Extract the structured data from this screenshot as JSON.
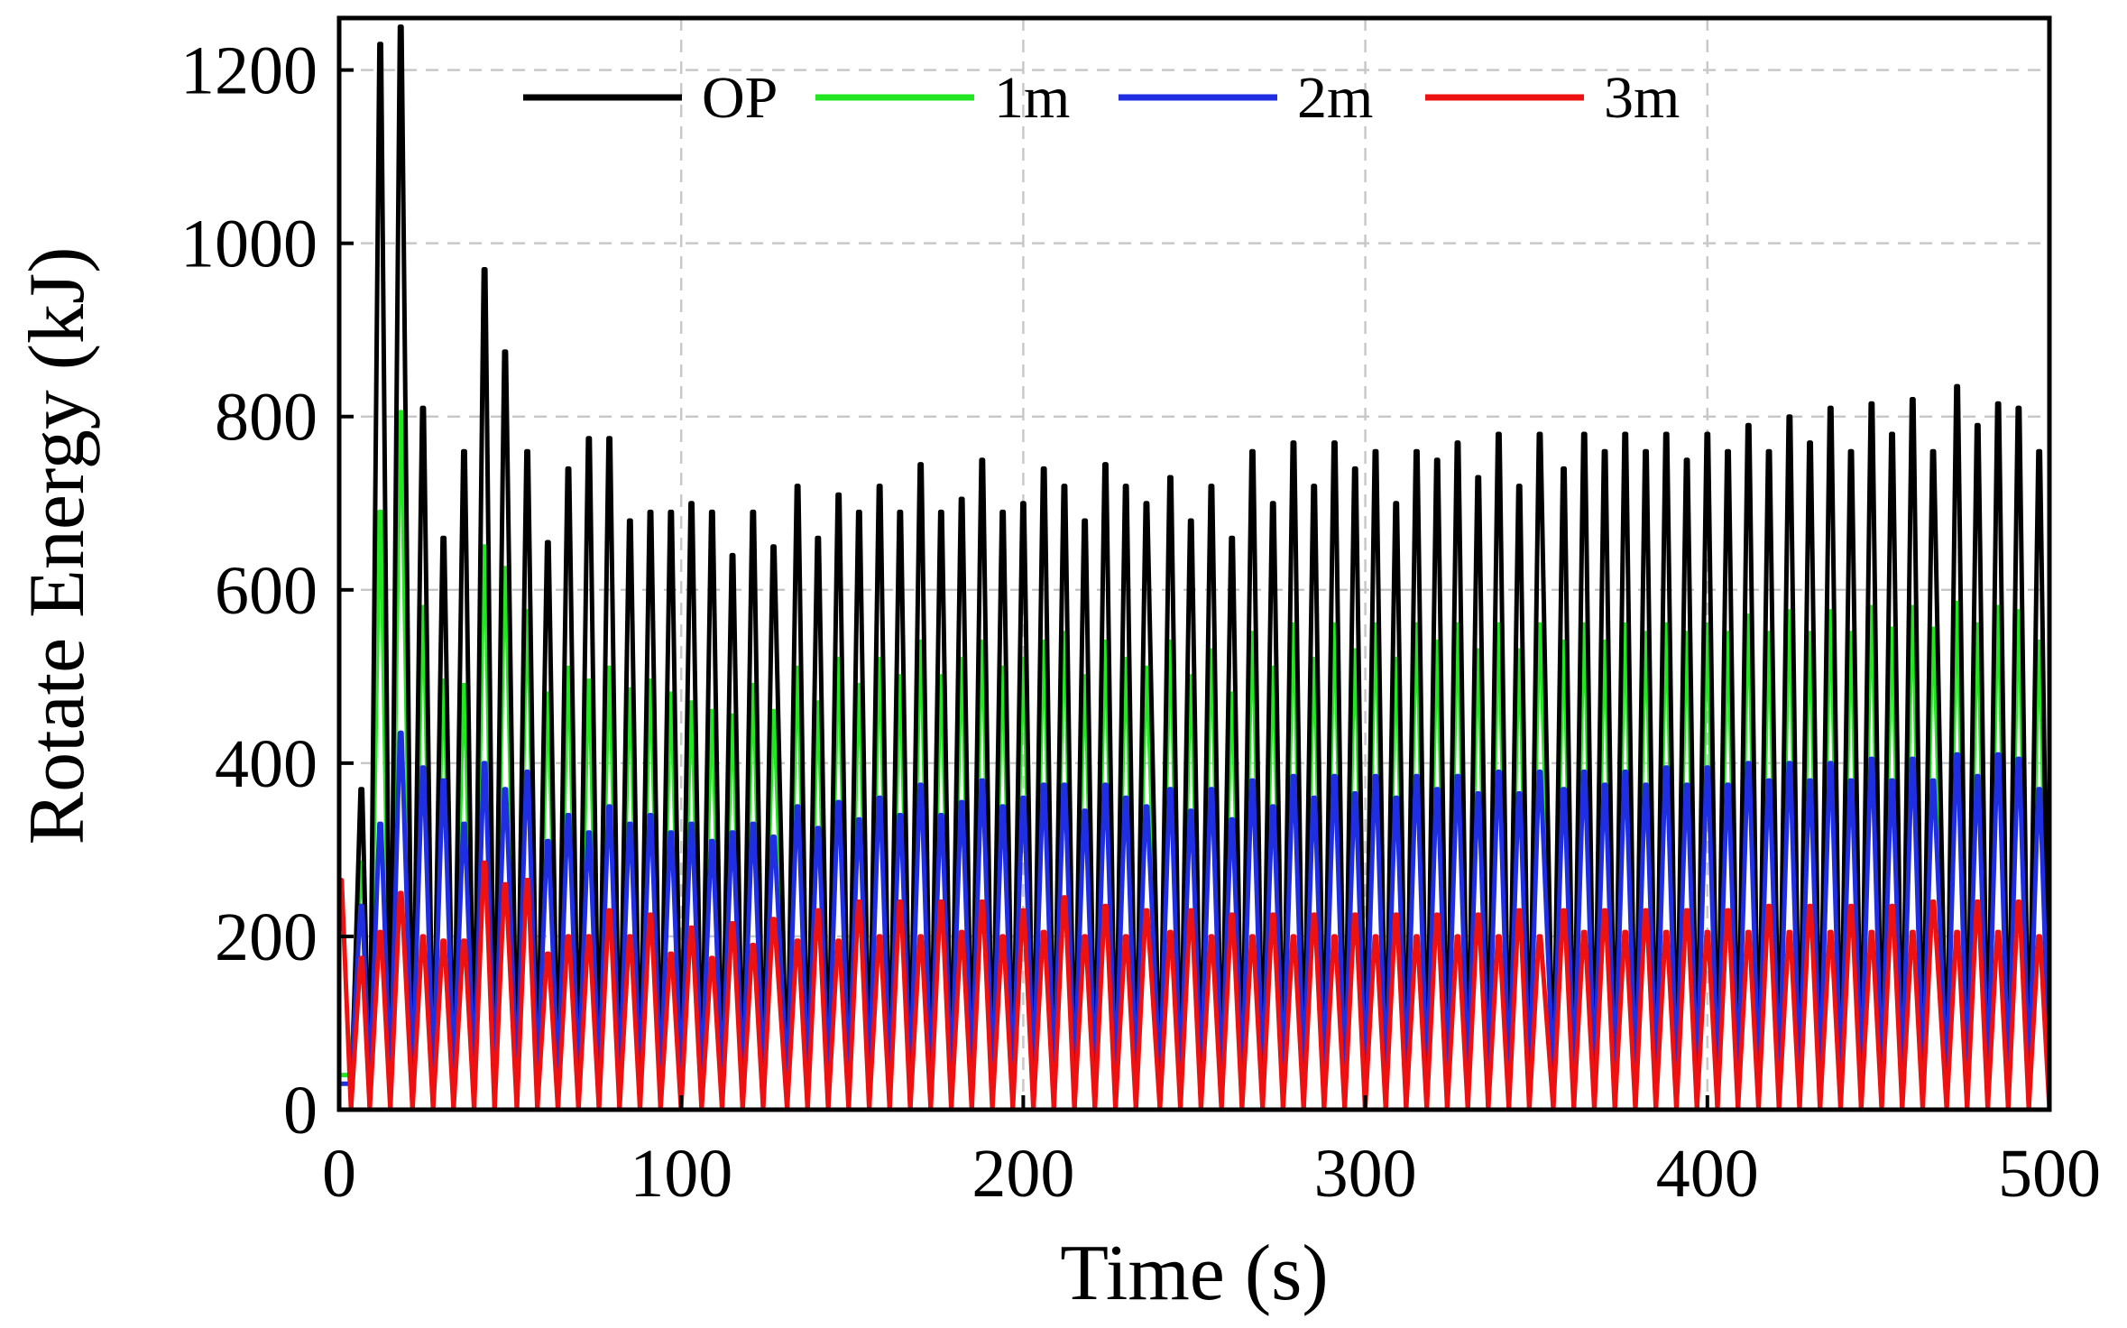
{
  "chart_data": {
    "type": "line",
    "title": "",
    "xlabel": "Time (s)",
    "ylabel": "Rotate Energy (kJ)",
    "xlim": [
      0,
      500
    ],
    "ylim": [
      0,
      1260
    ],
    "xticks": [
      0,
      100,
      200,
      300,
      400,
      500
    ],
    "yticks": [
      0,
      200,
      400,
      600,
      800,
      1000,
      1200
    ],
    "grid": true,
    "legend": "top, horizontal",
    "cycle_period_s": 6.1,
    "series": [
      {
        "name": "OP",
        "color": "#000000",
        "peak_times": [
          6.5,
          12,
          18,
          24.5,
          30.5,
          36.5,
          42.5,
          48.5,
          55,
          61,
          67,
          73,
          79,
          85,
          91,
          97,
          103,
          109,
          115,
          121,
          127,
          134,
          140,
          146,
          152,
          158,
          164,
          170,
          176,
          182,
          188,
          194,
          200,
          206,
          212,
          218,
          224,
          230,
          236,
          243,
          249,
          255,
          261,
          267,
          273,
          279,
          285,
          291,
          297,
          303,
          309,
          315,
          321,
          327,
          333,
          339,
          345,
          351,
          358,
          364,
          370,
          376,
          382,
          388,
          394,
          400,
          406,
          412,
          418,
          424,
          430,
          436,
          442,
          448,
          454,
          460,
          466,
          473,
          479,
          485,
          491,
          497
        ],
        "peaks": [
          370,
          1230,
          1250,
          810,
          660,
          760,
          970,
          875,
          760,
          655,
          740,
          775,
          775,
          680,
          690,
          690,
          700,
          690,
          640,
          690,
          650,
          720,
          660,
          710,
          690,
          720,
          690,
          745,
          690,
          705,
          750,
          690,
          700,
          740,
          720,
          680,
          745,
          720,
          700,
          730,
          680,
          720,
          660,
          760,
          700,
          770,
          720,
          770,
          740,
          760,
          700,
          760,
          750,
          770,
          730,
          780,
          720,
          780,
          740,
          780,
          760,
          780,
          760,
          780,
          750,
          780,
          760,
          790,
          760,
          800,
          770,
          810,
          760,
          815,
          780,
          820,
          760,
          835,
          790,
          815,
          810,
          760
        ],
        "trough": 0
      },
      {
        "name": "1m",
        "color": "#22e622",
        "peak_times": [
          6.5,
          12,
          18,
          24.5,
          30.5,
          36.5,
          42.5,
          48.5,
          55,
          61,
          67,
          73,
          79,
          85,
          91,
          97,
          103,
          109,
          115,
          121,
          127,
          134,
          140,
          146,
          152,
          158,
          164,
          170,
          176,
          182,
          188,
          194,
          200,
          206,
          212,
          218,
          224,
          230,
          236,
          243,
          249,
          255,
          261,
          267,
          273,
          279,
          285,
          291,
          297,
          303,
          309,
          315,
          321,
          327,
          333,
          339,
          345,
          351,
          358,
          364,
          370,
          376,
          382,
          388,
          394,
          400,
          406,
          412,
          418,
          424,
          430,
          436,
          442,
          448,
          454,
          460,
          466,
          473,
          479,
          485,
          491,
          497
        ],
        "peaks": [
          285,
          690,
          805,
          580,
          495,
          490,
          650,
          625,
          575,
          480,
          510,
          495,
          510,
          485,
          495,
          480,
          470,
          460,
          455,
          490,
          460,
          510,
          470,
          520,
          490,
          520,
          500,
          540,
          500,
          520,
          540,
          510,
          520,
          540,
          550,
          500,
          540,
          520,
          510,
          540,
          500,
          530,
          480,
          550,
          510,
          560,
          520,
          560,
          530,
          560,
          520,
          560,
          540,
          560,
          530,
          560,
          530,
          560,
          540,
          560,
          540,
          560,
          550,
          560,
          550,
          560,
          550,
          570,
          550,
          575,
          550,
          575,
          550,
          580,
          555,
          580,
          555,
          585,
          560,
          580,
          575,
          540
        ],
        "trough": 40
      },
      {
        "name": "2m",
        "color": "#1e2ee0",
        "peak_times": [
          6.5,
          12,
          18,
          24.5,
          30.5,
          36.5,
          42.5,
          48.5,
          55,
          61,
          67,
          73,
          79,
          85,
          91,
          97,
          103,
          109,
          115,
          121,
          127,
          134,
          140,
          146,
          152,
          158,
          164,
          170,
          176,
          182,
          188,
          194,
          200,
          206,
          212,
          218,
          224,
          230,
          236,
          243,
          249,
          255,
          261,
          267,
          273,
          279,
          285,
          291,
          297,
          303,
          309,
          315,
          321,
          327,
          333,
          339,
          345,
          351,
          358,
          364,
          370,
          376,
          382,
          388,
          394,
          400,
          406,
          412,
          418,
          424,
          430,
          436,
          442,
          448,
          454,
          460,
          466,
          473,
          479,
          485,
          491,
          497
        ],
        "peaks": [
          235,
          330,
          435,
          395,
          380,
          330,
          400,
          370,
          390,
          310,
          340,
          320,
          350,
          330,
          340,
          320,
          330,
          310,
          320,
          330,
          315,
          350,
          325,
          355,
          335,
          360,
          340,
          375,
          340,
          355,
          380,
          350,
          360,
          375,
          375,
          345,
          375,
          360,
          350,
          370,
          345,
          370,
          335,
          380,
          350,
          385,
          360,
          385,
          365,
          385,
          360,
          385,
          370,
          385,
          365,
          390,
          365,
          390,
          370,
          390,
          375,
          390,
          375,
          395,
          375,
          395,
          375,
          400,
          380,
          400,
          380,
          400,
          380,
          405,
          380,
          405,
          380,
          410,
          385,
          410,
          405,
          370
        ],
        "trough": 30
      },
      {
        "name": "3m",
        "color": "#ee1111",
        "peak_times": [
          0.5,
          6.5,
          12,
          18,
          24.5,
          30.5,
          36.5,
          42.5,
          48.5,
          55,
          61,
          67,
          73,
          79,
          85,
          91,
          97,
          103,
          109,
          115,
          121,
          127,
          134,
          140,
          146,
          152,
          158,
          164,
          170,
          176,
          182,
          188,
          194,
          200,
          206,
          212,
          218,
          224,
          230,
          236,
          243,
          249,
          255,
          261,
          267,
          273,
          279,
          285,
          291,
          297,
          303,
          309,
          315,
          321,
          327,
          333,
          339,
          345,
          351,
          358,
          364,
          370,
          376,
          382,
          388,
          394,
          400,
          406,
          412,
          418,
          424,
          430,
          436,
          442,
          448,
          454,
          460,
          466,
          473,
          479,
          485,
          491,
          497
        ],
        "peaks": [
          265,
          175,
          205,
          250,
          200,
          195,
          195,
          285,
          260,
          265,
          180,
          200,
          200,
          230,
          200,
          225,
          180,
          210,
          175,
          215,
          190,
          220,
          195,
          230,
          195,
          240,
          200,
          240,
          200,
          240,
          205,
          240,
          200,
          230,
          205,
          245,
          200,
          235,
          200,
          230,
          205,
          230,
          200,
          225,
          200,
          225,
          200,
          225,
          200,
          225,
          200,
          225,
          200,
          225,
          200,
          225,
          200,
          230,
          200,
          230,
          205,
          230,
          205,
          230,
          205,
          230,
          205,
          230,
          205,
          235,
          205,
          235,
          205,
          235,
          205,
          235,
          205,
          240,
          205,
          240,
          205,
          240,
          200
        ],
        "trough": 0
      }
    ]
  },
  "legend": {
    "entries": [
      {
        "label": "OP",
        "color": "#000000"
      },
      {
        "label": "1m",
        "color": "#22e622"
      },
      {
        "label": "2m",
        "color": "#1e2ee0"
      },
      {
        "label": "3m",
        "color": "#ee1111"
      }
    ]
  }
}
